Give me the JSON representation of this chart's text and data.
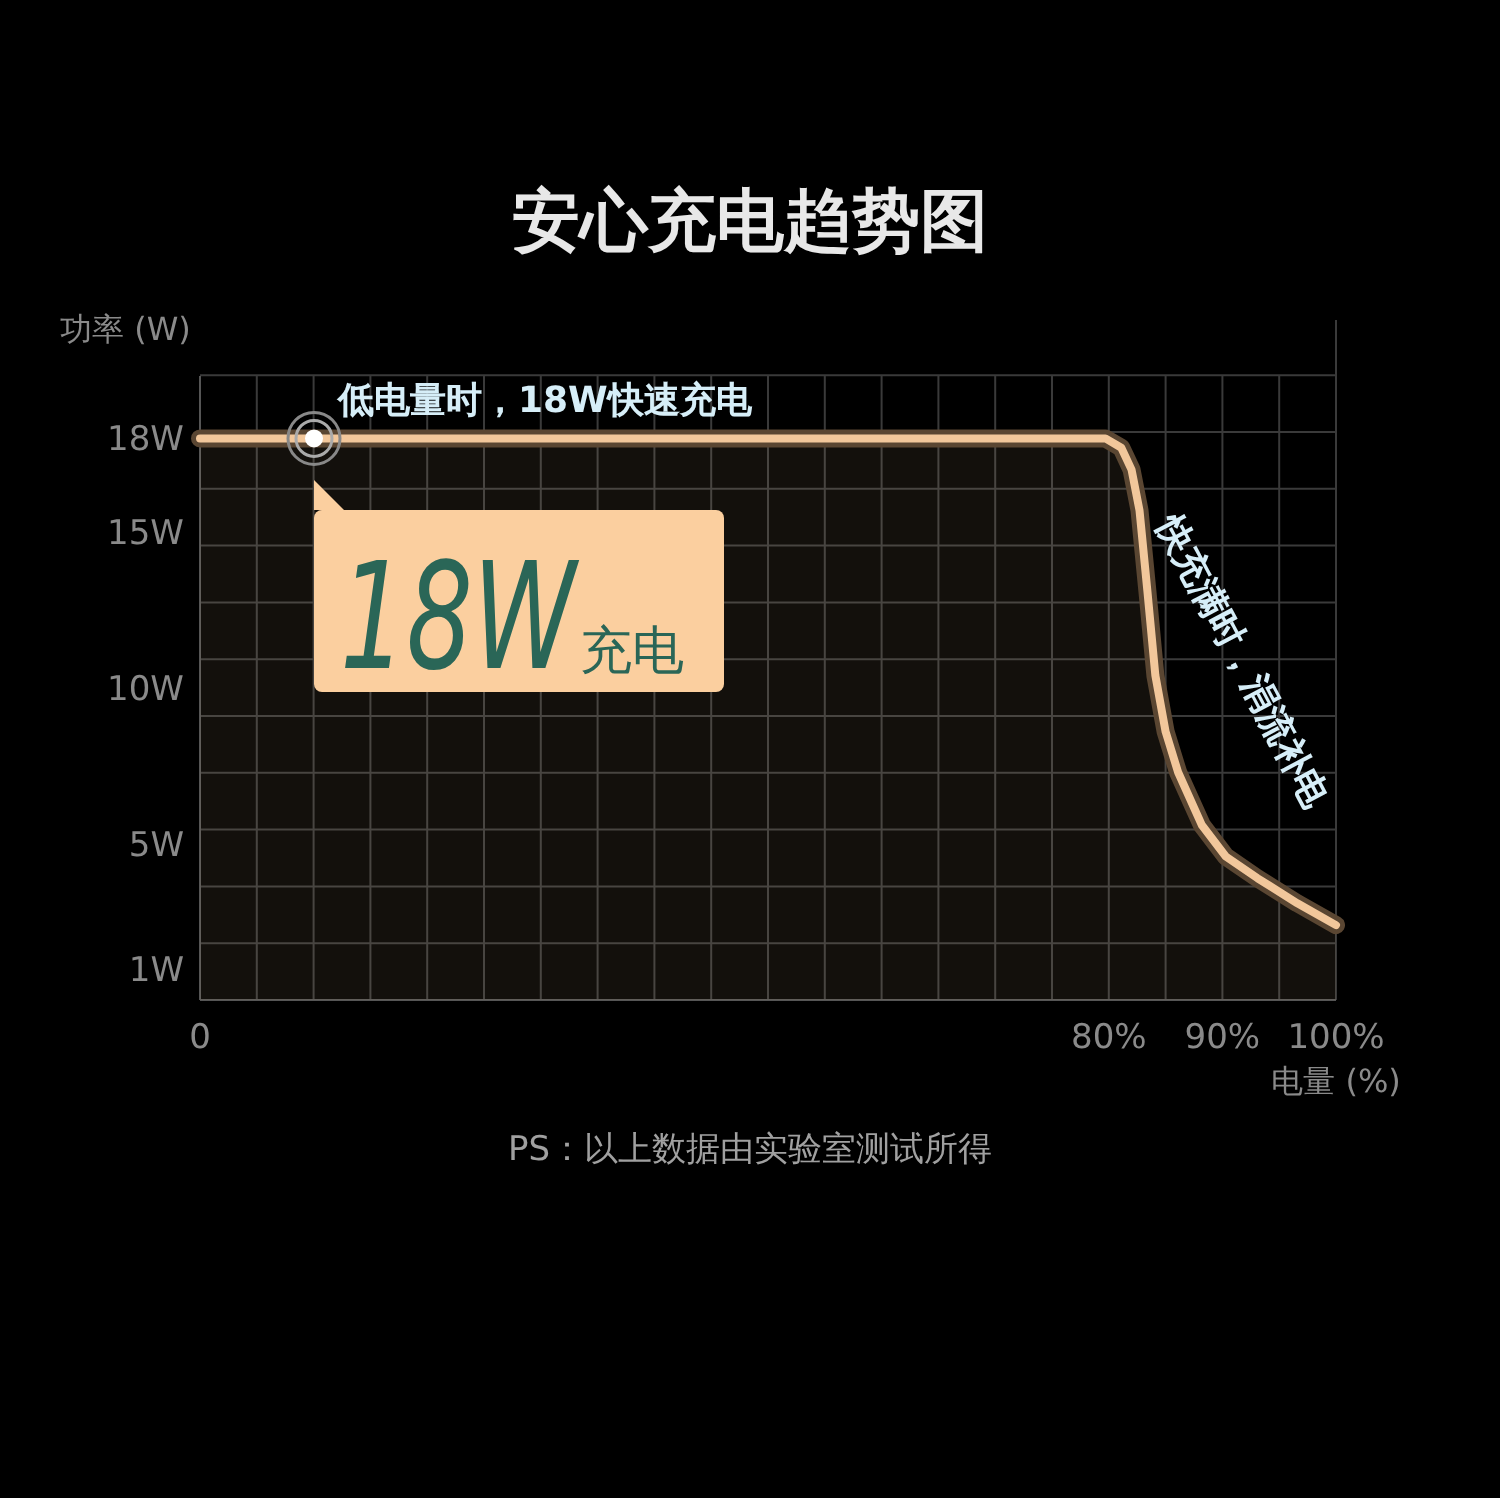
{
  "chart_data": {
    "type": "line",
    "title": "安心充电趋势图",
    "xlabel": "电量 (%)",
    "ylabel": "功率 (W)",
    "x": [
      0,
      79.7,
      81.1,
      82.0,
      82.7,
      83.4,
      84.1,
      85.0,
      86.1,
      88.2,
      90.3,
      93.1,
      96.6,
      100
    ],
    "series": [
      {
        "color": "#f2c79b",
        "values": [
          18,
          18,
          17.7,
          17,
          15.7,
          13.1,
          10.4,
          8.6,
          7.3,
          5.6,
          4.6,
          3.9,
          3.1,
          2.4
        ]
      }
    ],
    "xlim": [
      0,
      100
    ],
    "xticks": [
      0,
      {
        "value": 80,
        "label": "80%"
      },
      {
        "value": 90,
        "label": "90%"
      },
      {
        "value": 100,
        "label": "100%"
      }
    ],
    "ylim": [
      0,
      20
    ],
    "yticks": [
      {
        "value": 1,
        "label": "1W"
      },
      {
        "value": 5,
        "label": "5W"
      },
      {
        "value": 10,
        "label": "10W"
      },
      {
        "value": 15,
        "label": "15W"
      },
      {
        "value": 18,
        "label": "18W"
      }
    ],
    "grid": true,
    "annotations": [
      "低电量时，18W快速充电",
      "18W",
      "充电",
      "快充满时，涓流补电",
      "PS：以上数据由实验室测试所得"
    ]
  }
}
